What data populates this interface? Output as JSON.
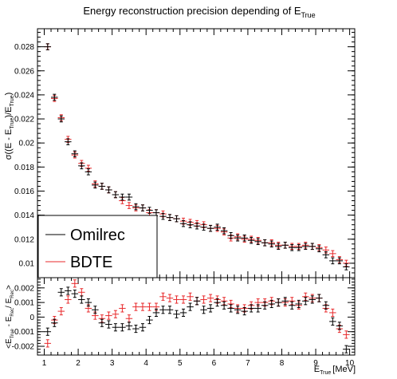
{
  "chart_data": [
    {
      "type": "scatter",
      "title_main": "Energy reconstruction precision depending of E",
      "title_sub": "True",
      "ylabel": {
        "base": "σ((E - E",
        "sub1": "True",
        "mid": ")/E",
        "sub2": "True",
        "end": ")"
      },
      "ylim": [
        0.0088,
        0.0295
      ],
      "xlim": [
        0.8,
        10.15
      ],
      "yticks": [
        {
          "v": 0.01,
          "label": "0.01"
        },
        {
          "v": 0.012,
          "label": "0.012"
        },
        {
          "v": 0.014,
          "label": "0.014"
        },
        {
          "v": 0.016,
          "label": "0.016"
        },
        {
          "v": 0.018,
          "label": "0.018"
        },
        {
          "v": 0.02,
          "label": "0.02"
        },
        {
          "v": 0.022,
          "label": "0.022"
        },
        {
          "v": 0.024,
          "label": "0.024"
        },
        {
          "v": 0.026,
          "label": "0.026"
        },
        {
          "v": 0.028,
          "label": "0.028"
        }
      ],
      "legend": {
        "placement": "bottom-left",
        "entries": [
          {
            "label": "Omilrec",
            "color": "#000000"
          },
          {
            "label": "BDTE",
            "color": "#e8292b"
          }
        ]
      },
      "series": [
        {
          "name": "Omilrec",
          "color": "#000000",
          "x": [
            1.1,
            1.3,
            1.5,
            1.7,
            1.9,
            2.1,
            2.3,
            2.5,
            2.7,
            2.9,
            3.1,
            3.3,
            3.5,
            3.7,
            3.9,
            4.1,
            4.3,
            4.5,
            4.7,
            4.9,
            5.1,
            5.3,
            5.5,
            5.7,
            5.9,
            6.1,
            6.3,
            6.5,
            6.7,
            6.9,
            7.1,
            7.3,
            7.5,
            7.7,
            7.9,
            8.1,
            8.3,
            8.5,
            8.7,
            8.9,
            9.1,
            9.3,
            9.5,
            9.7,
            9.9
          ],
          "y": [
            0.028,
            0.0238,
            0.022,
            0.0201,
            0.0191,
            0.0181,
            0.0176,
            0.0165,
            0.0164,
            0.0161,
            0.0157,
            0.0155,
            0.0155,
            0.0147,
            0.0146,
            0.0144,
            0.0142,
            0.0139,
            0.0138,
            0.0137,
            0.0133,
            0.0132,
            0.0131,
            0.013,
            0.0129,
            0.013,
            0.0127,
            0.0123,
            0.0121,
            0.0121,
            0.0119,
            0.0118,
            0.0117,
            0.0116,
            0.0114,
            0.0115,
            0.0113,
            0.0113,
            0.0114,
            0.0114,
            0.0112,
            0.0107,
            0.0102,
            0.0102,
            0.0097
          ]
        },
        {
          "name": "BDTE",
          "color": "#e8292b",
          "x": [
            1.1,
            1.3,
            1.5,
            1.7,
            1.9,
            2.1,
            2.3,
            2.5,
            2.7,
            2.9,
            3.1,
            3.3,
            3.5,
            3.7,
            3.9,
            4.1,
            4.3,
            4.5,
            4.7,
            4.9,
            5.1,
            5.3,
            5.5,
            5.7,
            5.9,
            6.1,
            6.3,
            6.5,
            6.7,
            6.9,
            7.1,
            7.3,
            7.5,
            7.7,
            7.9,
            8.1,
            8.3,
            8.5,
            8.7,
            8.9,
            9.1,
            9.3,
            9.5,
            9.7,
            9.9
          ],
          "y": [
            0.028,
            0.0237,
            0.0221,
            0.0203,
            0.019,
            0.0183,
            0.0179,
            0.0166,
            0.0164,
            0.0161,
            0.0157,
            0.0152,
            0.0148,
            0.0146,
            0.0146,
            0.0142,
            0.0142,
            0.0141,
            0.0138,
            0.0137,
            0.0135,
            0.0134,
            0.0133,
            0.0132,
            0.0129,
            0.0129,
            0.0126,
            0.0121,
            0.0122,
            0.012,
            0.012,
            0.0119,
            0.0117,
            0.0117,
            0.0115,
            0.0115,
            0.0114,
            0.0114,
            0.0115,
            0.0114,
            0.0113,
            0.0111,
            0.0108,
            0.0103,
            0.01
          ]
        }
      ],
      "xerr": 0.1,
      "yerr": 0.00025
    },
    {
      "type": "scatter",
      "ylabel": {
        "base": "<E",
        "sub1": "True",
        "mid": " - E",
        "sub2": "Rec",
        "end": "/ E",
        "sub3": "Rec",
        "tail": ">"
      },
      "xlabel": {
        "base": "E",
        "sub": "True",
        "unit": "[MeV]"
      },
      "ylim": [
        -0.0026,
        0.0027
      ],
      "xlim": [
        0.8,
        10.15
      ],
      "yticks": [
        {
          "v": -0.002,
          "label": "-0.002"
        },
        {
          "v": -0.001,
          "label": "-0.001"
        },
        {
          "v": 0.0,
          "label": "0"
        },
        {
          "v": 0.001,
          "label": "0.001"
        },
        {
          "v": 0.002,
          "label": "0.002"
        }
      ],
      "xticks": [
        {
          "v": 1,
          "label": "1"
        },
        {
          "v": 2,
          "label": "2"
        },
        {
          "v": 3,
          "label": "3"
        },
        {
          "v": 4,
          "label": "4"
        },
        {
          "v": 5,
          "label": "5"
        },
        {
          "v": 6,
          "label": "6"
        },
        {
          "v": 7,
          "label": "7"
        },
        {
          "v": 8,
          "label": "8"
        },
        {
          "v": 9,
          "label": "9"
        },
        {
          "v": 10,
          "label": "10"
        }
      ],
      "series": [
        {
          "name": "Omilrec",
          "color": "#000000",
          "x": [
            1.1,
            1.3,
            1.5,
            1.7,
            1.9,
            2.1,
            2.3,
            2.5,
            2.7,
            2.9,
            3.1,
            3.3,
            3.5,
            3.7,
            3.9,
            4.1,
            4.3,
            4.5,
            4.7,
            4.9,
            5.1,
            5.3,
            5.5,
            5.7,
            5.9,
            6.1,
            6.3,
            6.5,
            6.7,
            6.9,
            7.1,
            7.3,
            7.5,
            7.7,
            7.9,
            8.1,
            8.3,
            8.5,
            8.7,
            8.9,
            9.1,
            9.3,
            9.5,
            9.7,
            9.9
          ],
          "y": [
            -0.001,
            -0.0004,
            0.0017,
            0.0018,
            0.0016,
            0.0012,
            0.001,
            0.0005,
            -0.0004,
            -0.0005,
            -0.0007,
            -0.0007,
            -0.0006,
            -0.0008,
            -0.0007,
            -0.0002,
            0.0003,
            0.0005,
            0.0005,
            0.0002,
            0.0003,
            0.0007,
            0.0011,
            0.0005,
            0.0006,
            0.001,
            0.0008,
            0.0006,
            0.0005,
            0.0004,
            0.0006,
            0.0006,
            0.0008,
            0.0009,
            0.001,
            0.0011,
            0.0008,
            0.0009,
            0.0011,
            0.0012,
            0.0013,
            0.0008,
            -0.0003,
            -0.0006,
            -0.0022
          ]
        },
        {
          "name": "BDTE",
          "color": "#e8292b",
          "x": [
            1.1,
            1.3,
            1.5,
            1.7,
            1.9,
            2.1,
            2.3,
            2.5,
            2.7,
            2.9,
            3.1,
            3.3,
            3.5,
            3.7,
            3.9,
            4.1,
            4.3,
            4.5,
            4.7,
            4.9,
            5.1,
            5.3,
            5.5,
            5.7,
            5.9,
            6.1,
            6.3,
            6.5,
            6.7,
            6.9,
            7.1,
            7.3,
            7.5,
            7.7,
            7.9,
            8.1,
            8.3,
            8.5,
            8.7,
            8.9,
            9.1,
            9.3,
            9.5,
            9.7,
            9.9
          ],
          "y": [
            -0.0018,
            -0.0002,
            0.0004,
            0.0012,
            0.0023,
            0.0017,
            0.0006,
            0.0001,
            -0.0001,
            0.0001,
            0.0002,
            0.0006,
            -0.0001,
            0.0007,
            0.0007,
            0.0007,
            0.0007,
            0.0014,
            0.0013,
            0.0012,
            0.0012,
            0.0014,
            0.0011,
            0.0012,
            0.0013,
            0.0012,
            0.0011,
            0.0009,
            0.0006,
            0.0006,
            0.0008,
            0.001,
            0.001,
            0.0011,
            0.001,
            0.001,
            0.0011,
            0.0008,
            0.0014,
            0.0013,
            0.0013,
            0.0006,
            0.0003,
            -0.0008,
            -0.0012
          ]
        }
      ],
      "xerr": 0.1,
      "yerr": 0.00025
    }
  ]
}
